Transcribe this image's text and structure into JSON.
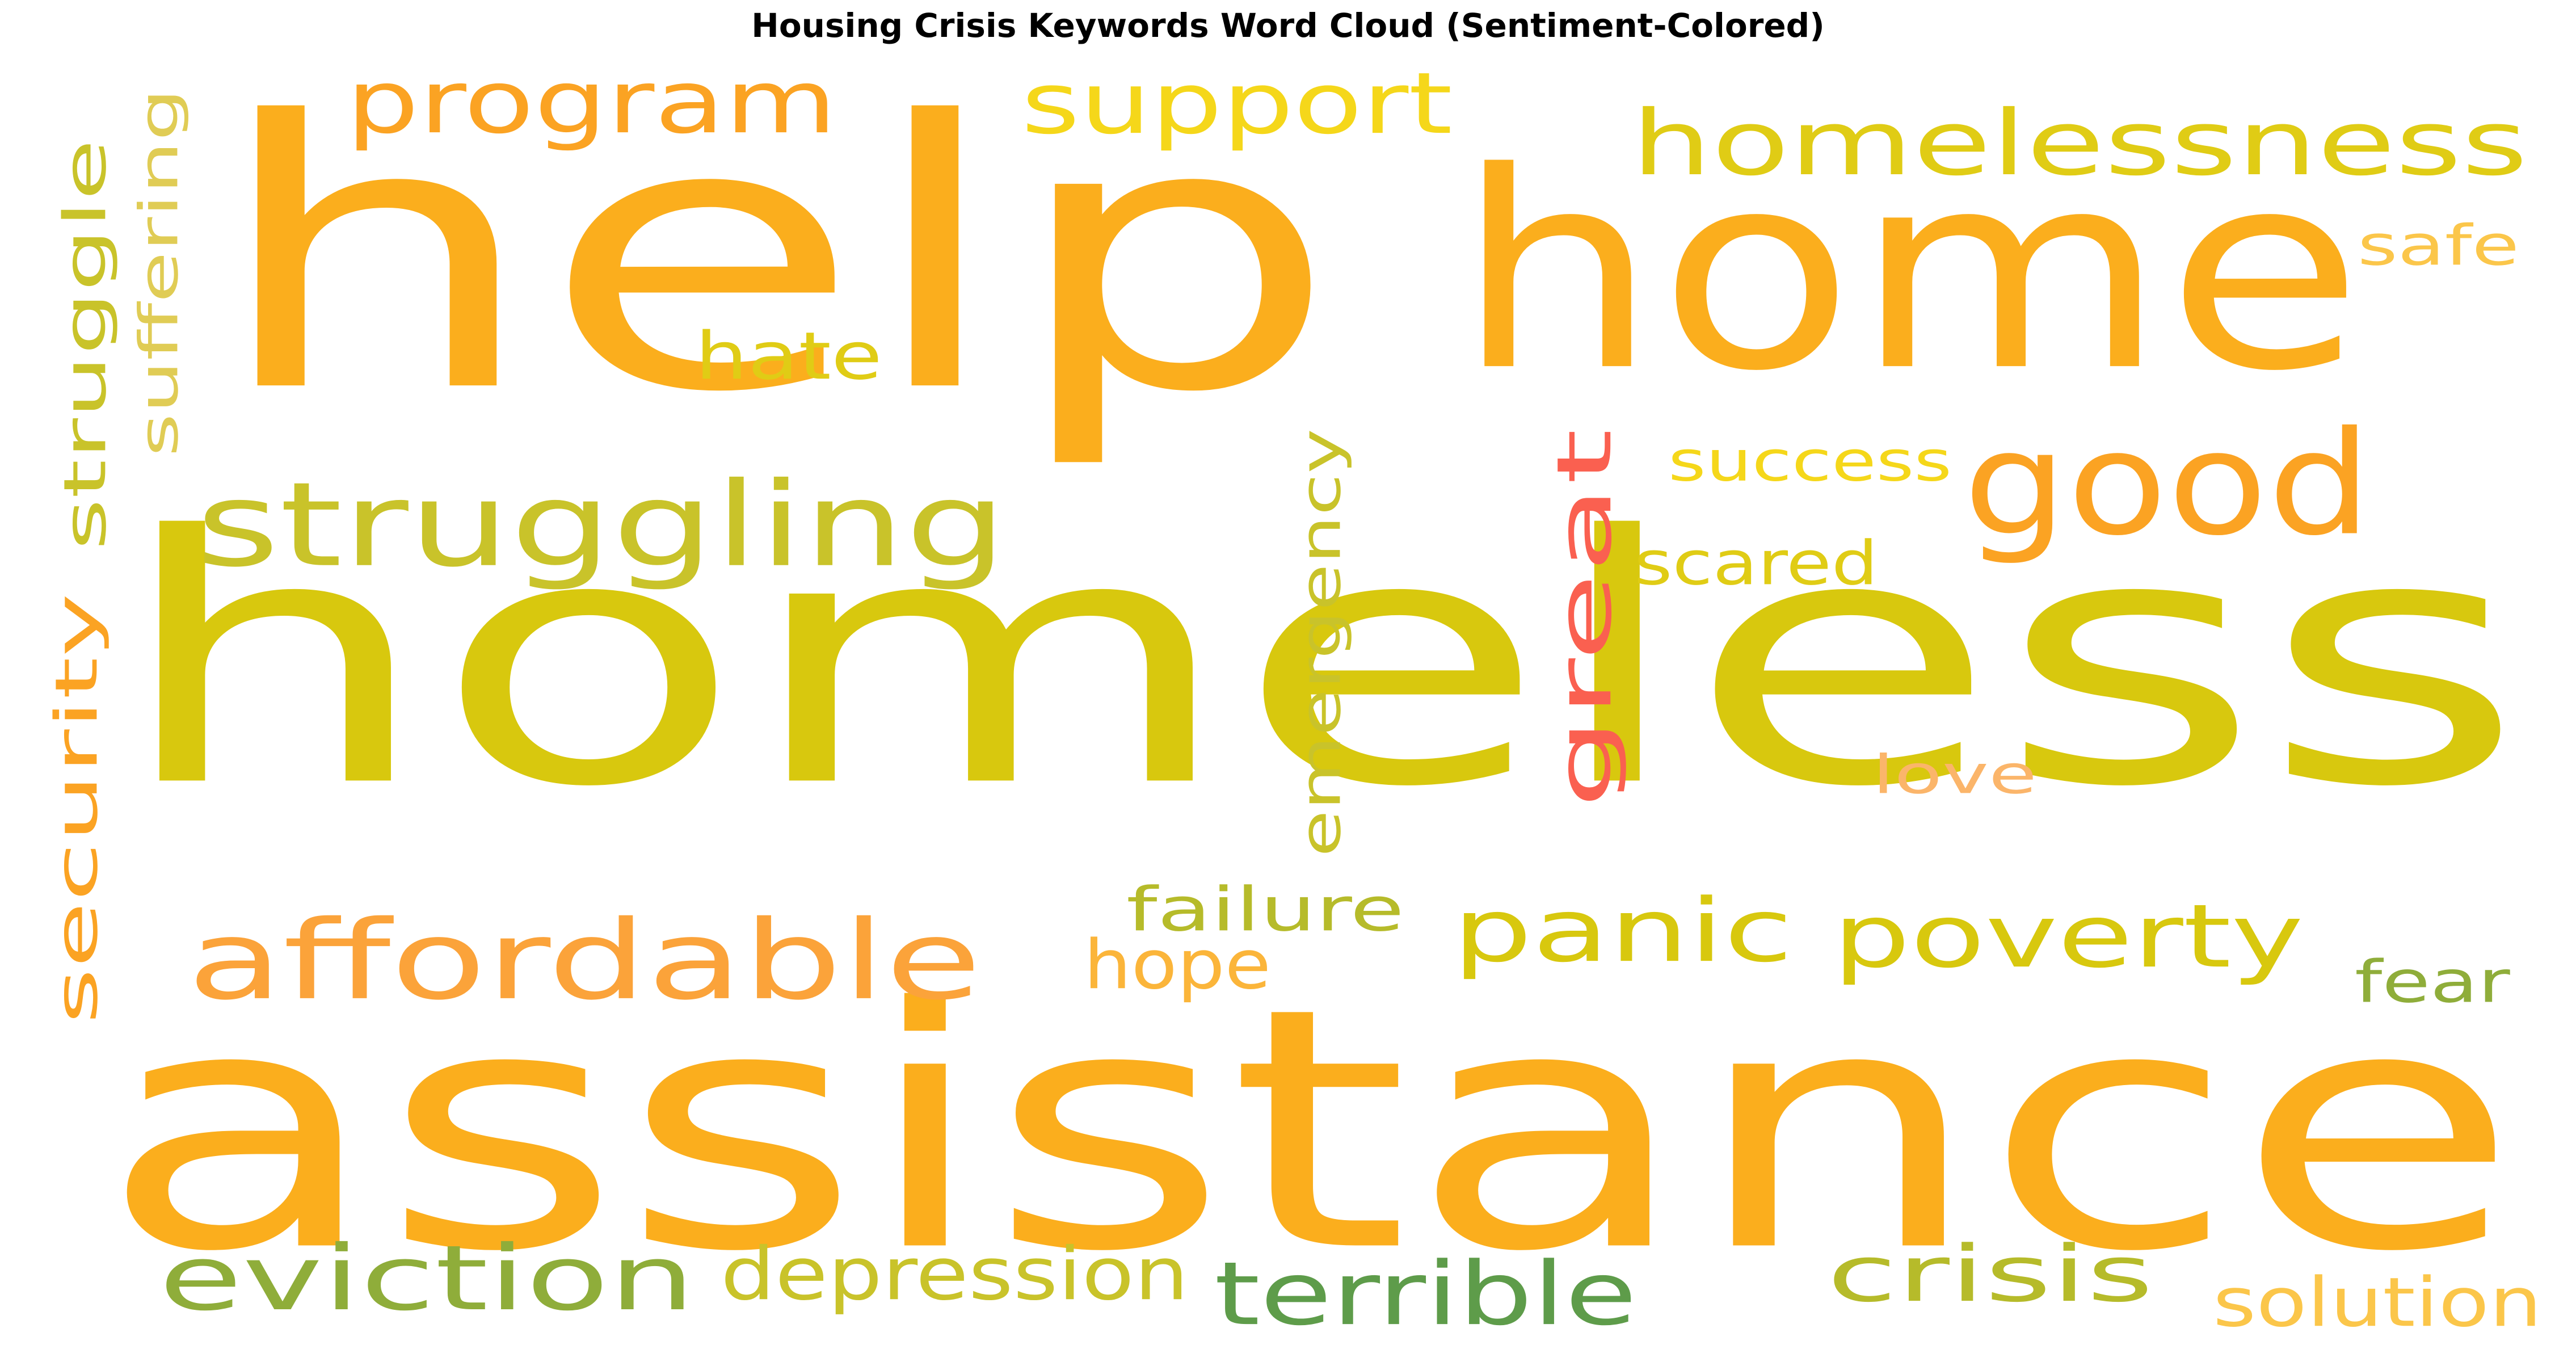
{
  "chart_data": {
    "type": "wordcloud",
    "title": "Housing Crisis Keywords Word Cloud (Sentiment-Colored)",
    "words": [
      {
        "text": "homeless",
        "color": "#d8c80e"
      },
      {
        "text": "help",
        "color": "#fbae1d"
      },
      {
        "text": "assistance",
        "color": "#fbae1d"
      },
      {
        "text": "home",
        "color": "#fbae1d"
      },
      {
        "text": "homelessness",
        "color": "#e0cc15"
      },
      {
        "text": "good",
        "color": "#fba323"
      },
      {
        "text": "struggling",
        "color": "#c9c32a"
      },
      {
        "text": "program",
        "color": "#fba323"
      },
      {
        "text": "support",
        "color": "#f5d71a"
      },
      {
        "text": "struggle",
        "color": "#c9c32a"
      },
      {
        "text": "security",
        "color": "#fba323"
      },
      {
        "text": "suffering",
        "color": "#e0cc55"
      },
      {
        "text": "great",
        "color": "#fa6050"
      },
      {
        "text": "emergency",
        "color": "#c9c32a"
      },
      {
        "text": "hate",
        "color": "#e0cc15"
      },
      {
        "text": "safe",
        "color": "#fbc64a"
      },
      {
        "text": "success",
        "color": "#f5d71a"
      },
      {
        "text": "scared",
        "color": "#e0cc15"
      },
      {
        "text": "love",
        "color": "#fbb56a"
      },
      {
        "text": "affordable",
        "color": "#fba33a"
      },
      {
        "text": "panic",
        "color": "#d8c80e"
      },
      {
        "text": "poverty",
        "color": "#d8c80e"
      },
      {
        "text": "failure",
        "color": "#b6bb2a"
      },
      {
        "text": "hope",
        "color": "#fbb53a"
      },
      {
        "text": "fear",
        "color": "#8fad3a"
      },
      {
        "text": "eviction",
        "color": "#8fad3a"
      },
      {
        "text": "depression",
        "color": "#c9c32a"
      },
      {
        "text": "terrible",
        "color": "#5e9c4a"
      },
      {
        "text": "crisis",
        "color": "#b6bb2a"
      },
      {
        "text": "solution",
        "color": "#fbc64a"
      }
    ]
  }
}
